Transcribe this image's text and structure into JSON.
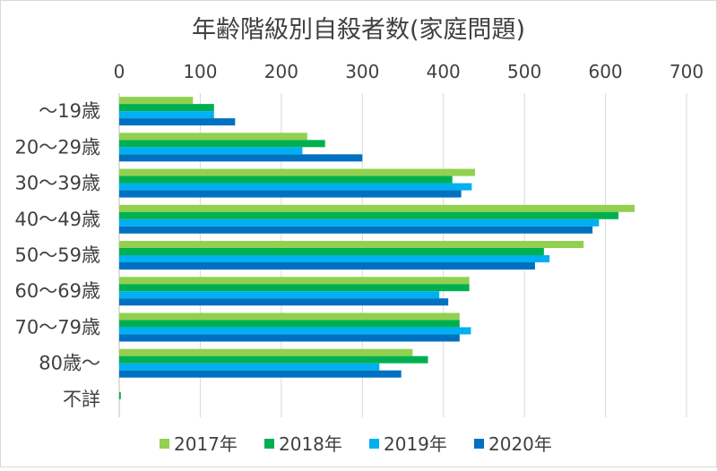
{
  "chart_data": {
    "type": "bar",
    "orientation": "horizontal",
    "title": "年齢階級別自殺者数(家庭問題)",
    "categories": [
      "〜19歳",
      "20〜29歳",
      "30〜39歳",
      "40〜49歳",
      "50〜59歳",
      "60〜69歳",
      "70〜79歳",
      "80歳〜",
      "不詳"
    ],
    "series": [
      {
        "name": "2017年",
        "color": "#92D050",
        "values": [
          91,
          232,
          439,
          636,
          573,
          432,
          420,
          362,
          0
        ]
      },
      {
        "name": "2018年",
        "color": "#00B050",
        "values": [
          117,
          254,
          411,
          616,
          524,
          432,
          420,
          381,
          2
        ]
      },
      {
        "name": "2019年",
        "color": "#00B0F0",
        "values": [
          117,
          226,
          435,
          592,
          531,
          395,
          434,
          321,
          0
        ]
      },
      {
        "name": "2020年",
        "color": "#0070C0",
        "values": [
          143,
          300,
          422,
          584,
          513,
          406,
          420,
          348,
          0
        ]
      }
    ],
    "xlim": [
      0,
      700
    ],
    "x_ticks": [
      "0",
      "100",
      "200",
      "300",
      "400",
      "500",
      "600",
      "700"
    ],
    "x_axis_position": "top",
    "grid": true,
    "legend_position": "bottom"
  }
}
